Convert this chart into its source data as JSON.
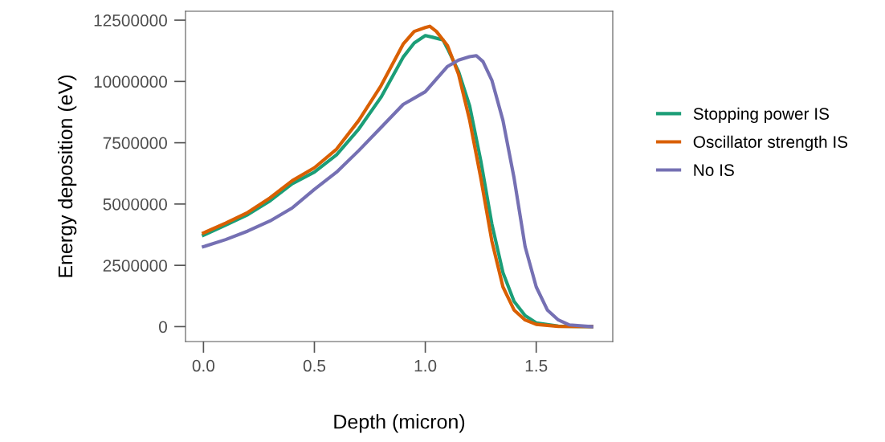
{
  "chart_data": {
    "type": "line",
    "xlabel": "Depth (micron)",
    "ylabel": "Energy deposition (eV)",
    "xlim": [
      -0.081,
      1.845
    ],
    "ylim": [
      -609000,
      12863000
    ],
    "xticks": [
      {
        "value": 0,
        "label": "0.0"
      },
      0.5,
      {
        "value": 1,
        "label": "1.0"
      },
      1.5
    ],
    "yticks": [
      0,
      2500000,
      5000000,
      7500000,
      10000000,
      12500000
    ],
    "grid": false,
    "legend": "right",
    "marker": "none",
    "line_style": "solid",
    "series": [
      {
        "name": "Stopping power IS",
        "color": "#1b9e77",
        "x": [
          0,
          0.1,
          0.2,
          0.3,
          0.4,
          0.5,
          0.6,
          0.7,
          0.8,
          0.9,
          0.95,
          1.0,
          1.03,
          1.08,
          1.1,
          1.15,
          1.2,
          1.25,
          1.3,
          1.35,
          1.4,
          1.45,
          1.5,
          1.6,
          1.75
        ],
        "values": [
          3730000,
          4140000,
          4570000,
          5130000,
          5830000,
          6300000,
          7010000,
          8060000,
          9350000,
          10990000,
          11570000,
          11870000,
          11810000,
          11690000,
          11340000,
          10400000,
          9000000,
          6770000,
          4190000,
          2200000,
          1030000,
          450000,
          150000,
          20000,
          0
        ]
      },
      {
        "name": "Oscillator strength IS",
        "color": "#d95f02",
        "x": [
          0,
          0.1,
          0.2,
          0.3,
          0.4,
          0.5,
          0.6,
          0.7,
          0.8,
          0.9,
          0.95,
          1.0,
          1.02,
          1.05,
          1.1,
          1.15,
          1.2,
          1.25,
          1.3,
          1.35,
          1.4,
          1.45,
          1.5,
          1.6,
          1.75
        ],
        "values": [
          3820000,
          4220000,
          4660000,
          5250000,
          5950000,
          6480000,
          7240000,
          8410000,
          9820000,
          11520000,
          12040000,
          12200000,
          12250000,
          12040000,
          11460000,
          10290000,
          8410000,
          6070000,
          3490000,
          1620000,
          680000,
          270000,
          90000,
          10000,
          0
        ]
      },
      {
        "name": "No IS",
        "color": "#7570b3",
        "x": [
          0,
          0.1,
          0.2,
          0.3,
          0.4,
          0.5,
          0.6,
          0.7,
          0.8,
          0.9,
          1.0,
          1.1,
          1.15,
          1.2,
          1.23,
          1.26,
          1.3,
          1.35,
          1.4,
          1.45,
          1.5,
          1.55,
          1.6,
          1.65,
          1.75
        ],
        "values": [
          3260000,
          3550000,
          3900000,
          4310000,
          4840000,
          5600000,
          6300000,
          7180000,
          8120000,
          9060000,
          9580000,
          10610000,
          10870000,
          11010000,
          11050000,
          10810000,
          10050000,
          8410000,
          6070000,
          3260000,
          1620000,
          680000,
          270000,
          70000,
          0
        ]
      }
    ]
  }
}
